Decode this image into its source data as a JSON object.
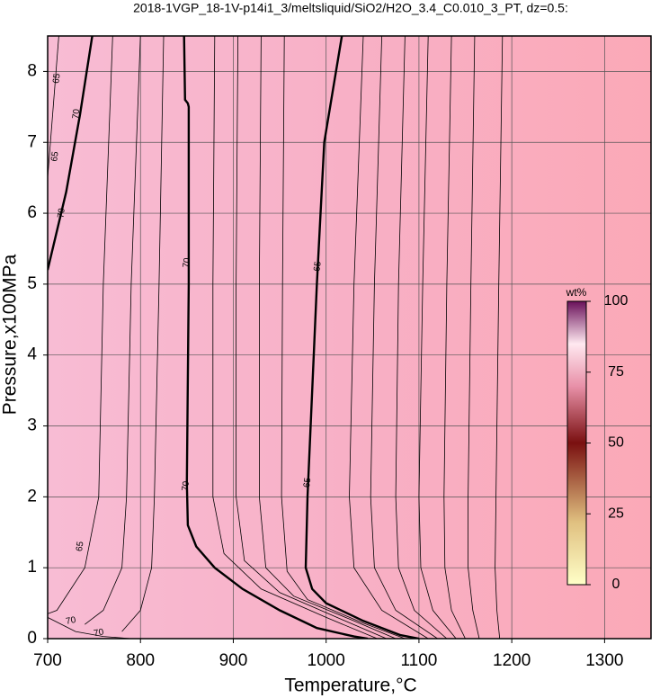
{
  "chart_data": {
    "type": "contour",
    "title": "2018-1VGP_18-1V-p14i1_3/meltsliquid/SiO2/H2O_3.4_C0.010_3_PT, dz=0.5:",
    "x_label": "Temperature,°C",
    "y_label": "Pressure,x100MPa",
    "xlim": [
      700,
      1350
    ],
    "ylim": [
      0,
      8.5
    ],
    "xticks": [
      700,
      800,
      900,
      1000,
      1100,
      1200,
      1300
    ],
    "yticks": [
      0,
      1,
      2,
      3,
      4,
      5,
      6,
      7,
      8
    ],
    "grid": true,
    "series": [
      {
        "x": [
          847,
          848,
          851,
          852,
          852,
          850,
          851,
          860,
          880,
          910,
          950,
          990,
          1030,
          1045
        ],
        "y": [
          8.5,
          7.6,
          7.55,
          7.5,
          5,
          2.2,
          1.6,
          1.3,
          1.0,
          0.7,
          0.4,
          0.15,
          0.03,
          0
        ],
        "bold": true
      },
      {
        "x": [
          1017,
          998,
          990,
          980,
          978,
          985,
          1000,
          1040,
          1080,
          1100
        ],
        "y": [
          8.5,
          7,
          5,
          2,
          1.0,
          0.7,
          0.5,
          0.25,
          0.05,
          0
        ],
        "bold": true
      },
      {
        "x": [
          700,
          720,
          735,
          748
        ],
        "y": [
          5.2,
          6.3,
          7.4,
          8.5
        ],
        "bold": true
      },
      {
        "x": [
          700,
          706,
          712
        ],
        "y": [
          6.5,
          7.5,
          8.5
        ],
        "bold": false
      },
      {
        "x": [
          700,
          730,
          760,
          790
        ],
        "y": [
          0.3,
          0.1,
          0.03,
          0
        ],
        "bold": false
      },
      {
        "x": [
          770,
          760,
          755,
          740,
          710,
          700
        ],
        "y": [
          8.5,
          5,
          2,
          1,
          0.4,
          0.35
        ],
        "bold": false
      },
      {
        "x": [
          800,
          790,
          785,
          780,
          760,
          740
        ],
        "y": [
          8.5,
          5,
          2,
          1,
          0.4,
          0.2
        ],
        "bold": false
      },
      {
        "x": [
          825,
          820,
          815,
          812,
          800,
          780
        ],
        "y": [
          8.5,
          5,
          2,
          1,
          0.4,
          0.1
        ],
        "bold": false
      },
      {
        "x": [
          880,
          878,
          878,
          890,
          930,
          1000,
          1055
        ],
        "y": [
          8.5,
          5,
          2,
          1.2,
          0.7,
          0.3,
          0
        ],
        "bold": false
      },
      {
        "x": [
          905,
          903,
          903,
          912,
          950,
          1015,
          1065
        ],
        "y": [
          8.5,
          5,
          2,
          1.1,
          0.65,
          0.28,
          0
        ],
        "bold": false
      },
      {
        "x": [
          930,
          928,
          928,
          935,
          965,
          1030,
          1075
        ],
        "y": [
          8.5,
          5,
          2,
          1.0,
          0.6,
          0.25,
          0
        ],
        "bold": false
      },
      {
        "x": [
          955,
          953,
          952,
          958,
          980,
          1040,
          1085
        ],
        "y": [
          8.5,
          5,
          2,
          0.95,
          0.55,
          0.22,
          0
        ],
        "bold": false
      },
      {
        "x": [
          1040,
          1030,
          1025,
          1030,
          1060,
          1110
        ],
        "y": [
          8.5,
          5,
          2,
          1,
          0.4,
          0
        ],
        "bold": false
      },
      {
        "x": [
          1060,
          1052,
          1048,
          1052,
          1075,
          1120
        ],
        "y": [
          8.5,
          5,
          2,
          1,
          0.4,
          0
        ],
        "bold": false
      },
      {
        "x": [
          1085,
          1078,
          1075,
          1078,
          1095,
          1130
        ],
        "y": [
          8.5,
          5,
          2,
          1,
          0.4,
          0
        ],
        "bold": false
      },
      {
        "x": [
          1110,
          1104,
          1100,
          1102,
          1115,
          1140
        ],
        "y": [
          8.5,
          5,
          2,
          1,
          0.4,
          0
        ],
        "bold": false
      },
      {
        "x": [
          1135,
          1130,
          1127,
          1128,
          1135,
          1150
        ],
        "y": [
          8.5,
          5,
          2,
          1,
          0.4,
          0
        ],
        "bold": false
      },
      {
        "x": [
          1160,
          1156,
          1153,
          1153,
          1158,
          1165
        ],
        "y": [
          8.5,
          5,
          2,
          1,
          0.4,
          0
        ],
        "bold": false
      },
      {
        "x": [
          1190,
          1186,
          1183,
          1182,
          1184,
          1187
        ],
        "y": [
          8.5,
          5,
          2,
          1,
          0.4,
          0
        ],
        "bold": false
      }
    ],
    "labels": [
      {
        "text": "70",
        "x": 850,
        "y": 5.3
      },
      {
        "text": "70",
        "x": 849,
        "y": 2.15
      },
      {
        "text": "65",
        "x": 991,
        "y": 5.25
      },
      {
        "text": "65",
        "x": 980,
        "y": 2.2
      },
      {
        "text": "70",
        "x": 715,
        "y": 6.0
      },
      {
        "text": "70",
        "x": 731,
        "y": 7.4
      },
      {
        "text": "65",
        "x": 708,
        "y": 6.8
      },
      {
        "text": "65",
        "x": 710,
        "y": 7.9
      },
      {
        "text": "70",
        "x": 725,
        "y": 0.25
      },
      {
        "text": "70",
        "x": 755,
        "y": 0.08
      },
      {
        "text": "65",
        "x": 735,
        "y": 1.3
      }
    ],
    "colorbar": {
      "title": "wt%",
      "lim": [
        0,
        100
      ],
      "ticks": [
        0,
        25,
        50,
        75,
        100
      ]
    }
  }
}
